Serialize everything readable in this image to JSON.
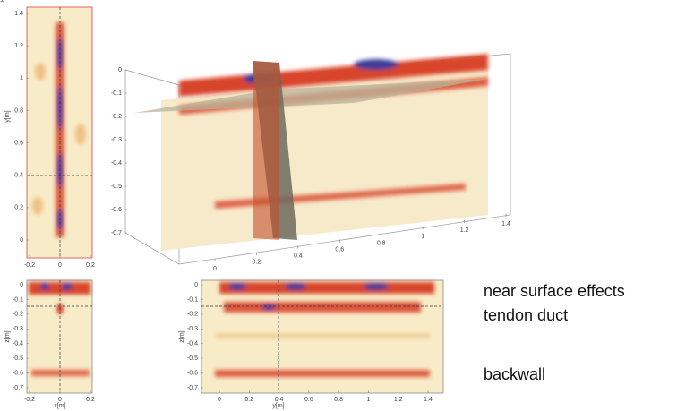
{
  "panels": {
    "plan_view": {
      "y_label": "y[m]",
      "x_ticks": [
        -0.2,
        0,
        0.2
      ],
      "y_ticks": [
        0,
        0.2,
        0.4,
        0.6,
        0.8,
        1,
        1.2,
        1.4
      ]
    },
    "front_view": {
      "x_label": "x[m]",
      "z_label": "z[m]",
      "x_ticks": [
        -0.2,
        0,
        0.2
      ],
      "z_ticks": [
        0,
        -0.1,
        -0.2,
        -0.3,
        -0.4,
        -0.5,
        -0.6,
        -0.7
      ]
    },
    "side_view": {
      "x_label": "y[m]",
      "z_label": "z[m]",
      "x_ticks": [
        0,
        0.2,
        0.4,
        0.6,
        0.8,
        1,
        1.2,
        1.4
      ],
      "z_ticks": [
        0,
        -0.1,
        -0.2,
        -0.3,
        -0.4,
        -0.5,
        -0.6,
        -0.7
      ]
    },
    "volume_view": {
      "z_ticks": [
        0,
        -0.1,
        -0.2,
        -0.3,
        -0.4,
        -0.5,
        -0.6,
        -0.7
      ],
      "x_ticks": [
        0.2
      ],
      "y_ticks": [
        0,
        0.2,
        0.4,
        0.6,
        0.8,
        1,
        1.2,
        1.4
      ]
    }
  },
  "annotations": {
    "near_surface": "near surface effects",
    "tendon_duct": "tendon duct",
    "backwall": "backwall"
  }
}
